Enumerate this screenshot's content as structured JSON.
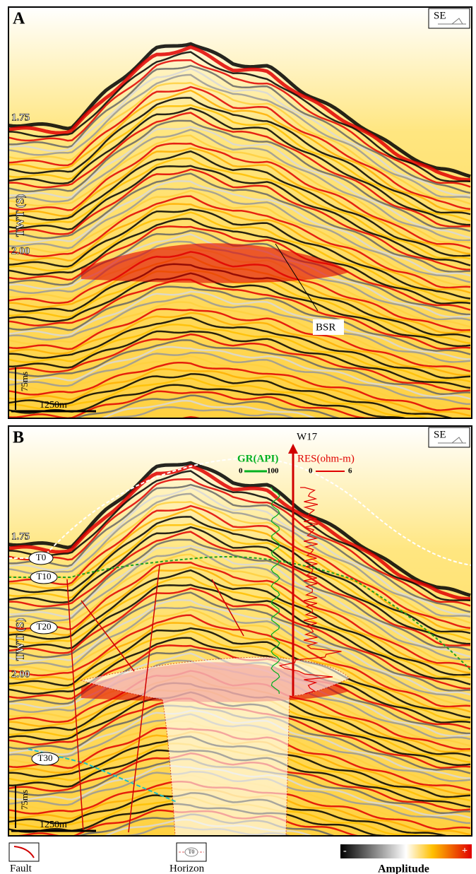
{
  "panels": [
    {
      "label": "A",
      "direction": "SE",
      "time_ticks": [
        "1.75",
        "2.00"
      ],
      "axis_label": "TWT (S)",
      "annotations": [
        "BSR"
      ],
      "vertical_scale": "75ms",
      "horizontal_scale": "1250m"
    },
    {
      "label": "B",
      "direction": "SE",
      "time_ticks": [
        "1.75",
        "2.00"
      ],
      "axis_label": "TWT (S)",
      "well": "W17",
      "gr_log": {
        "label": "GR(API)",
        "min": "0",
        "max": "100"
      },
      "res_log": {
        "label": "RES(ohm-m)",
        "min": "0",
        "max": "6"
      },
      "horizons": [
        "T0",
        "T10",
        "T20",
        "T30"
      ],
      "vertical_scale": "75ms",
      "horizontal_scale": "1250m"
    }
  ],
  "legend": {
    "fault": "Fault",
    "horizon_symbol": "T0",
    "horizon": "Horizon",
    "amplitude_min": "-",
    "amplitude_max": "+",
    "amplitude": "Amplitude"
  }
}
